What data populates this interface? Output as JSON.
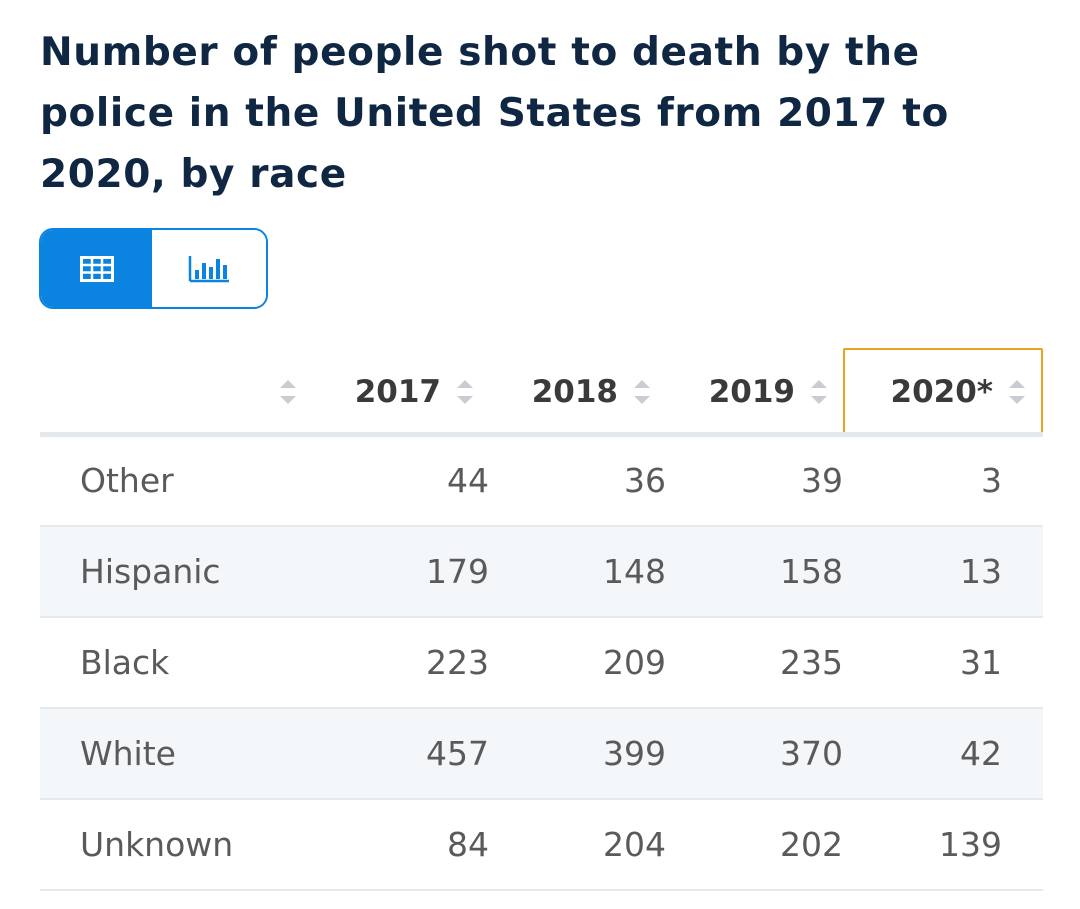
{
  "chart_data": {
    "type": "table",
    "title": "Number of people shot to death by the police in the United States from 2017 to 2020, by race",
    "columns": [
      "2017",
      "2018",
      "2019",
      "2020*"
    ],
    "sorted_column": "2020*",
    "rows": [
      {
        "label": "Other",
        "values": [
          44,
          36,
          39,
          3
        ]
      },
      {
        "label": "Hispanic",
        "values": [
          179,
          148,
          158,
          13
        ]
      },
      {
        "label": "Black",
        "values": [
          223,
          209,
          235,
          31
        ]
      },
      {
        "label": "White",
        "values": [
          457,
          399,
          370,
          42
        ]
      },
      {
        "label": "Unknown",
        "values": [
          84,
          204,
          202,
          139
        ]
      }
    ]
  },
  "view_toggle": {
    "active": "table",
    "table_icon": "table-grid-icon",
    "chart_icon": "bar-chart-icon"
  },
  "colors": {
    "accent": "#0a84e0",
    "title": "#0f2742",
    "active_sort_border": "#e8a31b",
    "row_alt": "#f4f7fa"
  }
}
